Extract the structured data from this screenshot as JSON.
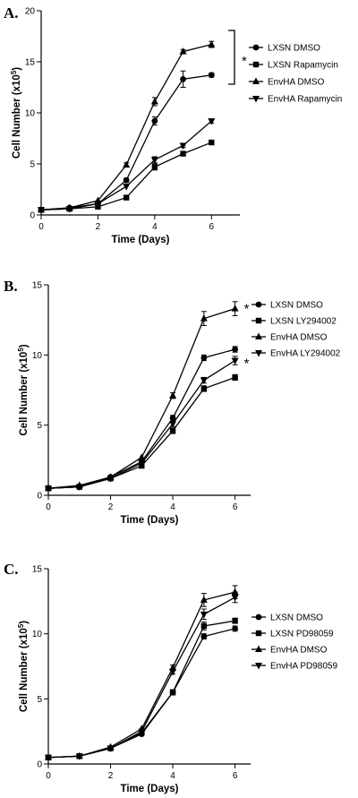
{
  "chart_data": [
    {
      "type": "line",
      "panel_label": "A.",
      "xlabel": "Time (Days)",
      "ylabel": "Cell Number (x10",
      "ylabel_sup": "5",
      "ylabel_close": ")",
      "xlim": [
        0,
        7
      ],
      "ylim": [
        0,
        20
      ],
      "xticks": [
        0,
        2,
        4,
        6
      ],
      "yticks": [
        0,
        5,
        10,
        15,
        20
      ],
      "annotation": "*",
      "legend": {
        "placement": "right"
      },
      "series": [
        {
          "name": "LXSN DMSO",
          "marker": "circle",
          "x": [
            0,
            1,
            2,
            3,
            4,
            5,
            6
          ],
          "y": [
            0.5,
            0.7,
            1.1,
            3.4,
            9.2,
            13.3,
            13.7
          ],
          "err": [
            0.1,
            0.1,
            0.1,
            0.2,
            0.4,
            0.8,
            0.2
          ]
        },
        {
          "name": "LXSN Rapamycin",
          "marker": "square",
          "x": [
            0,
            1,
            2,
            3,
            4,
            5,
            6
          ],
          "y": [
            0.5,
            0.6,
            0.8,
            1.7,
            4.7,
            6.0,
            7.1
          ],
          "err": [
            0.1,
            0.1,
            0.1,
            0.1,
            0.3,
            0.2,
            0.2
          ]
        },
        {
          "name": "EnvHA DMSO",
          "marker": "triangle-up",
          "x": [
            0,
            1,
            2,
            3,
            4,
            5,
            6
          ],
          "y": [
            0.5,
            0.7,
            1.4,
            4.9,
            11.1,
            16.0,
            16.7
          ],
          "err": [
            0.1,
            0.1,
            0.1,
            0.2,
            0.4,
            0.2,
            0.3
          ]
        },
        {
          "name": "EnvHA Rapamycin",
          "marker": "triangle-down",
          "x": [
            0,
            1,
            2,
            3,
            4,
            5,
            6
          ],
          "y": [
            0.5,
            0.6,
            1.1,
            2.8,
            5.4,
            6.8,
            9.2
          ],
          "err": [
            0.1,
            0.1,
            0.1,
            0.1,
            0.3,
            0.2,
            0.2
          ]
        }
      ]
    },
    {
      "type": "line",
      "panel_label": "B.",
      "xlabel": "Time (Days)",
      "ylabel": "Cell Number (x10",
      "ylabel_sup": "5",
      "ylabel_close": ")",
      "xlim": [
        0,
        6.5
      ],
      "ylim": [
        0,
        15
      ],
      "xticks": [
        0,
        2,
        4,
        6
      ],
      "yticks": [
        0,
        5,
        10,
        15
      ],
      "annotation": "*",
      "legend": {
        "placement": "right"
      },
      "series": [
        {
          "name": "LXSN DMSO",
          "marker": "circle",
          "x": [
            0,
            1,
            2,
            3,
            4,
            5,
            6
          ],
          "y": [
            0.5,
            0.6,
            1.3,
            2.4,
            5.5,
            9.8,
            10.4
          ],
          "err": [
            0.1,
            0.1,
            0.1,
            0.1,
            0.2,
            0.2,
            0.2
          ]
        },
        {
          "name": "LXSN LY294002",
          "marker": "square",
          "x": [
            0,
            1,
            2,
            3,
            4,
            5,
            6
          ],
          "y": [
            0.5,
            0.6,
            1.2,
            2.1,
            4.6,
            7.6,
            8.4
          ],
          "err": [
            0.1,
            0.1,
            0.1,
            0.1,
            0.2,
            0.2,
            0.2
          ]
        },
        {
          "name": "EnvHA DMSO",
          "marker": "triangle-up",
          "x": [
            0,
            1,
            2,
            3,
            4,
            5,
            6
          ],
          "y": [
            0.5,
            0.7,
            1.3,
            2.7,
            7.1,
            12.6,
            13.3
          ],
          "err": [
            0.1,
            0.1,
            0.1,
            0.1,
            0.2,
            0.5,
            0.5
          ]
        },
        {
          "name": "EnvHA LY294002",
          "marker": "triangle-down",
          "x": [
            0,
            1,
            2,
            3,
            4,
            5,
            6
          ],
          "y": [
            0.5,
            0.6,
            1.2,
            2.3,
            5.1,
            8.2,
            9.6
          ],
          "err": [
            0.1,
            0.1,
            0.1,
            0.1,
            0.2,
            0.2,
            0.3
          ]
        }
      ]
    },
    {
      "type": "line",
      "panel_label": "C.",
      "xlabel": "Time (Days)",
      "ylabel": "Cell Number (x10",
      "ylabel_sup": "5",
      "ylabel_close": ")",
      "xlim": [
        0,
        6.5
      ],
      "ylim": [
        0,
        15
      ],
      "xticks": [
        0,
        2,
        4,
        6
      ],
      "yticks": [
        0,
        5,
        10,
        15
      ],
      "legend": {
        "placement": "right"
      },
      "series": [
        {
          "name": "LXSN DMSO",
          "marker": "circle",
          "x": [
            0,
            1,
            2,
            3,
            4,
            5,
            6
          ],
          "y": [
            0.5,
            0.6,
            1.2,
            2.3,
            5.5,
            9.8,
            10.4
          ],
          "err": [
            0.1,
            0.1,
            0.1,
            0.1,
            0.2,
            0.2,
            0.2
          ]
        },
        {
          "name": "LXSN  PD98059",
          "marker": "square",
          "x": [
            0,
            1,
            2,
            3,
            4,
            5,
            6
          ],
          "y": [
            0.5,
            0.6,
            1.2,
            2.4,
            5.5,
            10.6,
            11.0
          ],
          "err": [
            0.1,
            0.1,
            0.1,
            0.1,
            0.2,
            0.3,
            0.2
          ]
        },
        {
          "name": "EnvHA DMSO",
          "marker": "triangle-up",
          "x": [
            0,
            1,
            2,
            3,
            4,
            5,
            6
          ],
          "y": [
            0.5,
            0.6,
            1.3,
            2.7,
            7.4,
            12.6,
            13.2
          ],
          "err": [
            0.1,
            0.1,
            0.1,
            0.1,
            0.2,
            0.5,
            0.5
          ]
        },
        {
          "name": "EnvHA PD98059",
          "marker": "triangle-down",
          "x": [
            0,
            1,
            2,
            3,
            4,
            5,
            6
          ],
          "y": [
            0.5,
            0.6,
            1.2,
            2.5,
            7.1,
            11.5,
            12.8
          ],
          "err": [
            0.1,
            0.1,
            0.1,
            0.1,
            0.2,
            0.4,
            0.4
          ]
        }
      ]
    }
  ]
}
